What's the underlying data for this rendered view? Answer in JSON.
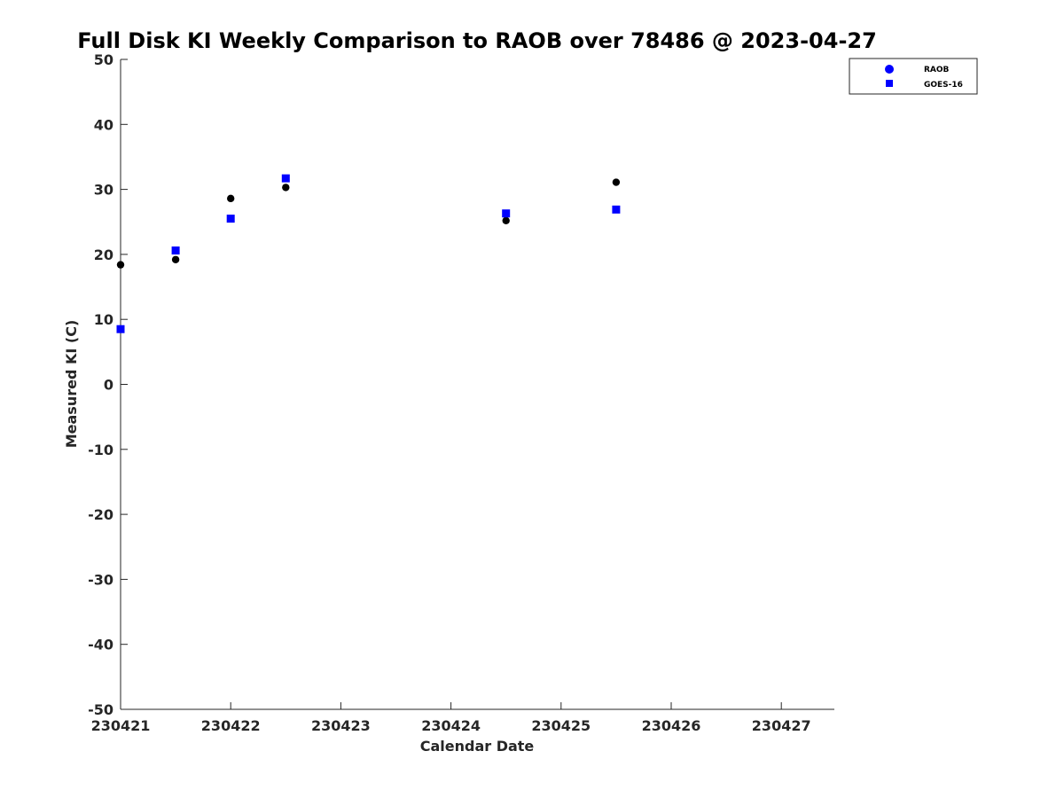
{
  "chart_data": {
    "type": "scatter",
    "title": "Full Disk KI Weekly Comparison to RAOB over 78486 @ 2023-04-27",
    "xlabel": "Calendar Date",
    "ylabel": "Measured KI (C)",
    "x_tick_labels": [
      "230421",
      "230422",
      "230423",
      "230424",
      "230425",
      "230426",
      "230427"
    ],
    "y_ticks": [
      50,
      40,
      30,
      20,
      10,
      0,
      -10,
      -20,
      -30,
      -40,
      -50
    ],
    "xlim": [
      "230421 00Z",
      "230427 12Z"
    ],
    "ylim": [
      -50,
      50
    ],
    "grid": false,
    "legend_position": "top-right, outside plot",
    "series": [
      {
        "name": "RAOB",
        "marker": "circle",
        "color": "#000000",
        "legend_color": "#0000ff",
        "points": [
          {
            "x": "230421 00Z",
            "y": 18.4
          },
          {
            "x": "230421 12Z",
            "y": 19.2
          },
          {
            "x": "230422 00Z",
            "y": 28.6
          },
          {
            "x": "230422 12Z",
            "y": 30.3
          },
          {
            "x": "230424 12Z",
            "y": 25.2
          },
          {
            "x": "230425 12Z",
            "y": 31.1
          }
        ]
      },
      {
        "name": "GOES-16",
        "marker": "square",
        "color": "#0000ff",
        "legend_color": "#0000ff",
        "points": [
          {
            "x": "230421 00Z",
            "y": 8.5
          },
          {
            "x": "230421 12Z",
            "y": 20.6
          },
          {
            "x": "230422 00Z",
            "y": 25.5
          },
          {
            "x": "230422 12Z",
            "y": 31.7
          },
          {
            "x": "230424 12Z",
            "y": 26.3
          },
          {
            "x": "230425 12Z",
            "y": 26.9
          }
        ]
      }
    ]
  }
}
